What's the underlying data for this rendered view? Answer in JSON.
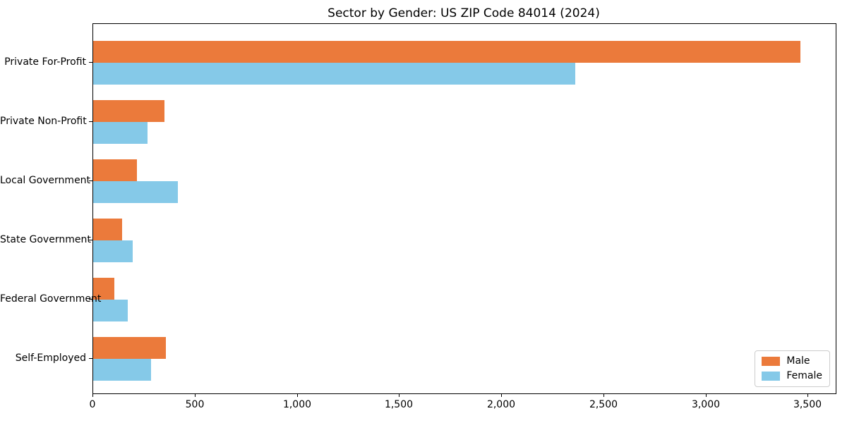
{
  "title": "Sector by Gender: US ZIP Code 84014 (2024)",
  "chart_data": {
    "type": "bar",
    "orientation": "horizontal",
    "title": "Sector by Gender: US ZIP Code 84014 (2024)",
    "xlabel": "",
    "ylabel": "",
    "categories": [
      "Private For-Profit",
      "Private Non-Profit",
      "Local Government",
      "State Government",
      "Federal Government",
      "Self-Employed"
    ],
    "series": [
      {
        "name": "Male",
        "color": "#EB7A3B",
        "values": [
          3460,
          349,
          214,
          142,
          104,
          356
        ]
      },
      {
        "name": "Female",
        "color": "#85C9E8",
        "values": [
          2360,
          266,
          414,
          193,
          169,
          283
        ]
      }
    ],
    "xlim": [
      0,
      3633
    ],
    "xticks": [
      0,
      500,
      1000,
      1500,
      2000,
      2500,
      3000,
      3500
    ],
    "xtick_labels": [
      "0",
      "500",
      "1,000",
      "1,500",
      "2,000",
      "2,500",
      "3,000",
      "3,500"
    ],
    "grid": false,
    "legend_position": "lower right",
    "plot_frame_color": "#000000",
    "background_color": "#ffffff"
  }
}
